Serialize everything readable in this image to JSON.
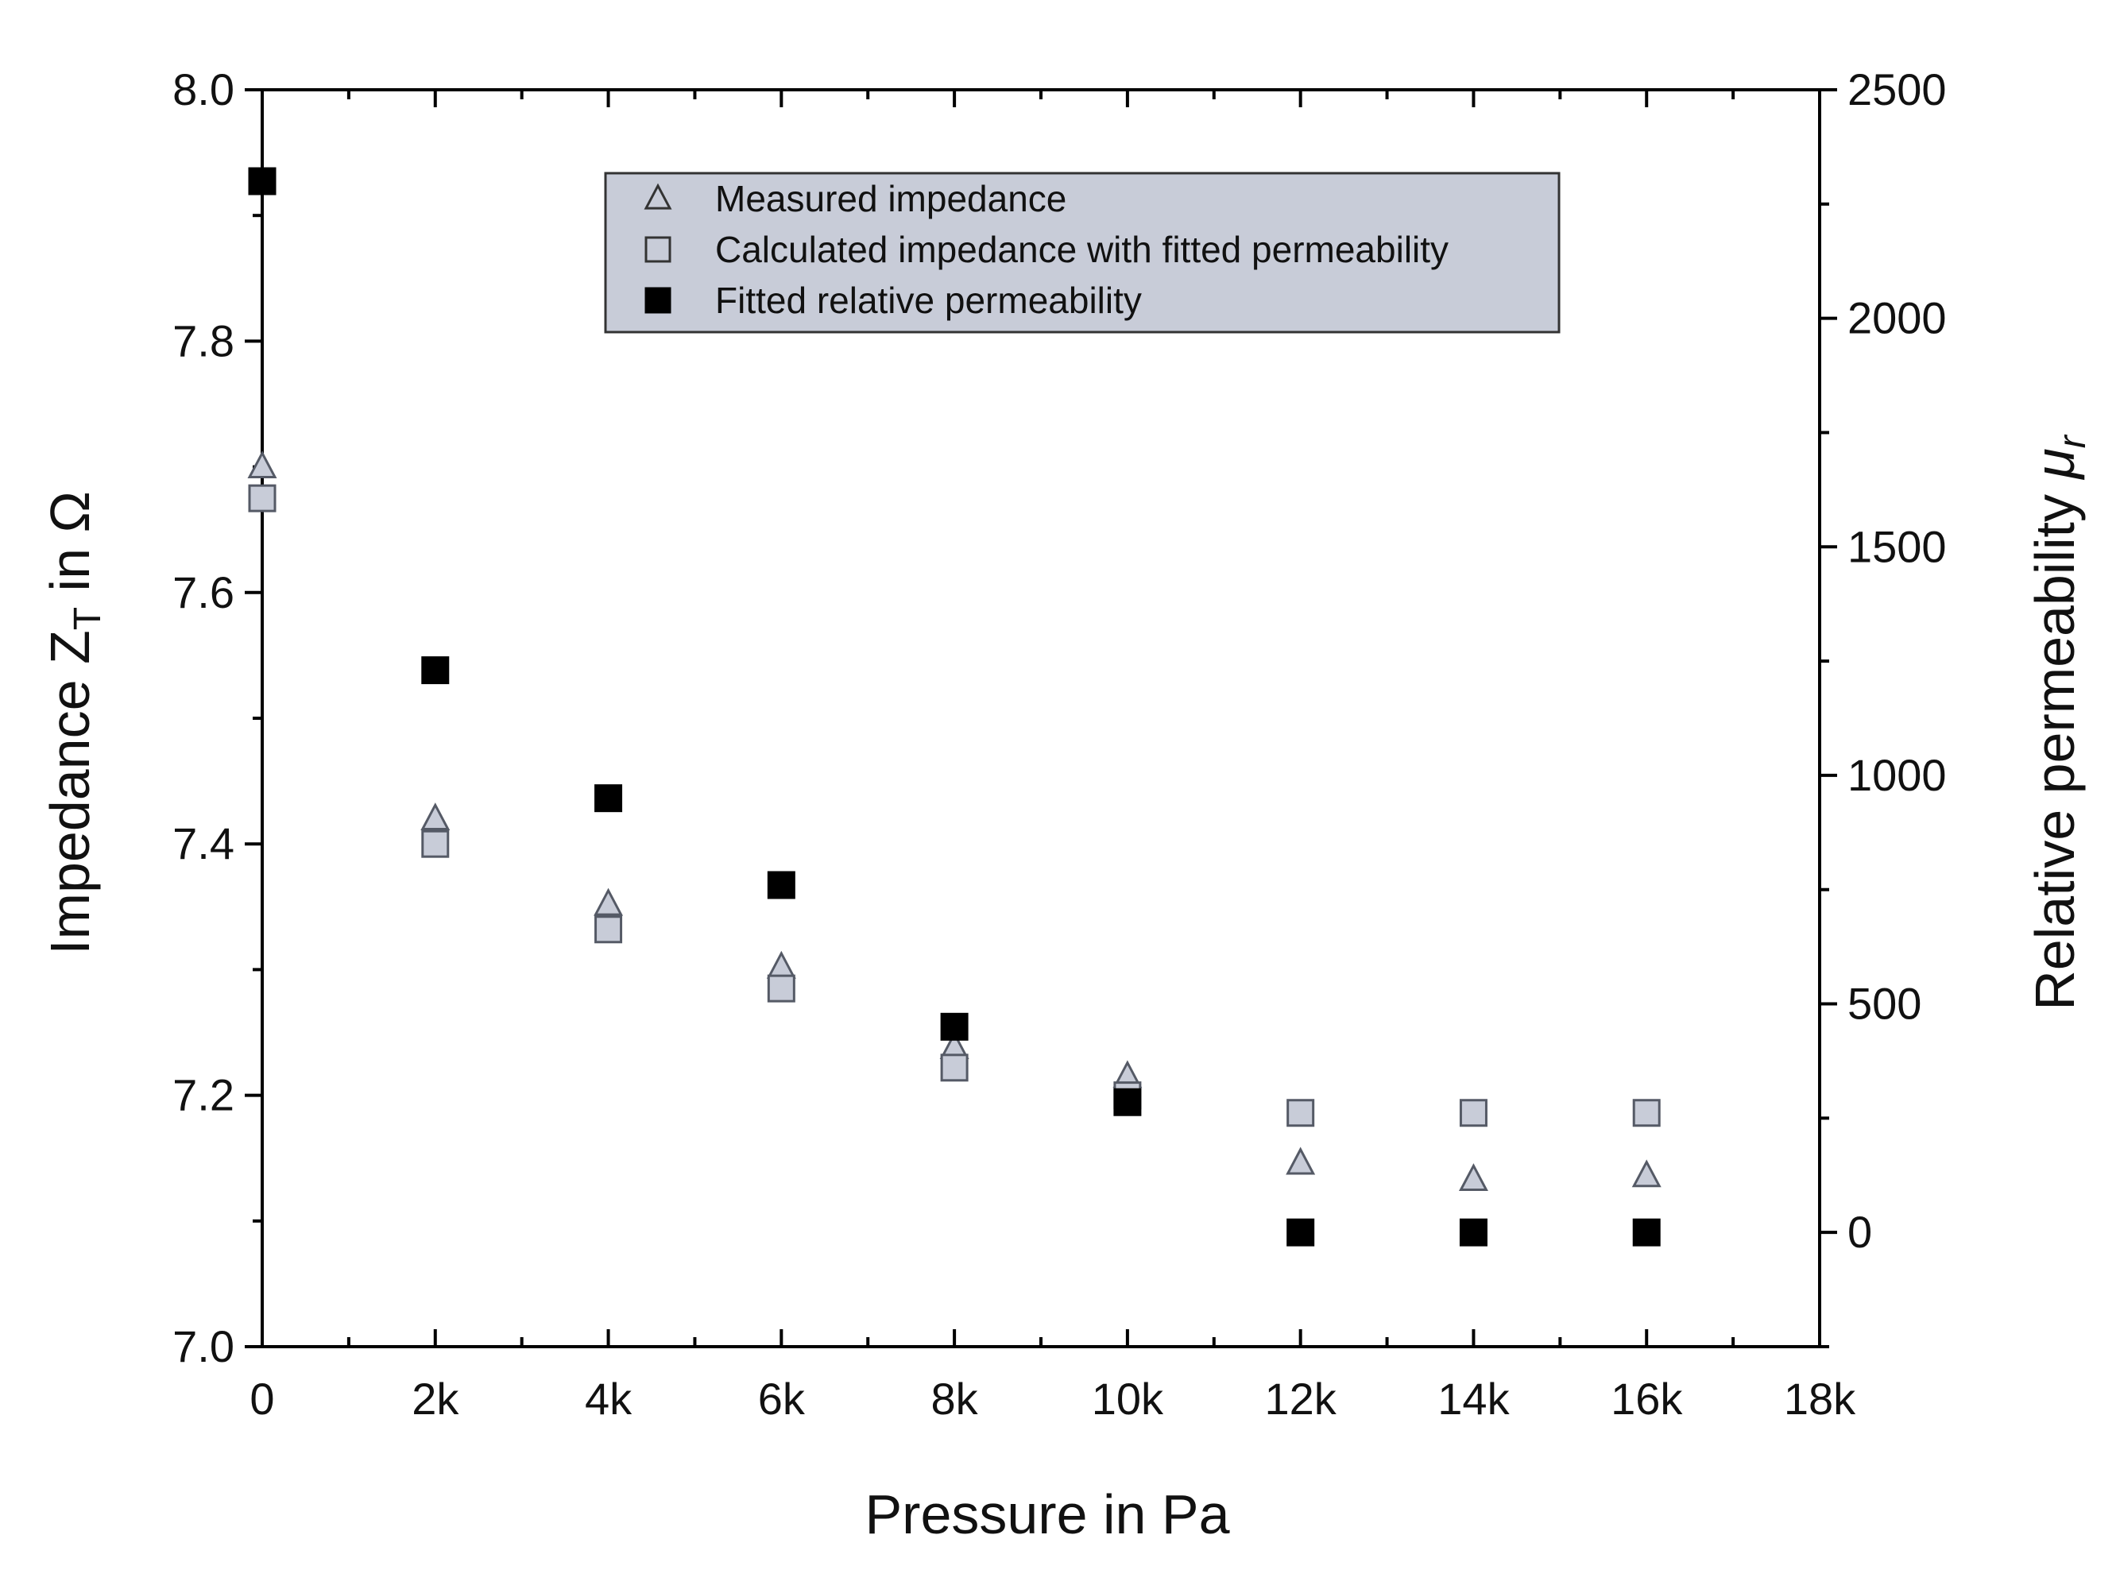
{
  "chart_data": {
    "type": "scatter",
    "x_axis": {
      "label": "Pressure in Pa",
      "min": 0,
      "max": 18000,
      "ticks": [
        0,
        2000,
        4000,
        6000,
        8000,
        10000,
        12000,
        14000,
        16000,
        18000
      ],
      "tick_labels": [
        "0",
        "2k",
        "4k",
        "6k",
        "8k",
        "10k",
        "12k",
        "14k",
        "16k",
        "18k"
      ],
      "minor_step": 1000
    },
    "y_axis_left": {
      "label_main": "Impedance Z",
      "label_sub": "T",
      "label_tail": " in Ω",
      "min": 7.0,
      "max": 8.0,
      "ticks": [
        7.0,
        7.2,
        7.4,
        7.6,
        7.8,
        8.0
      ],
      "tick_labels": [
        "7.0",
        "7.2",
        "7.4",
        "7.6",
        "7.8",
        "8.0"
      ],
      "minor_step": 0.1
    },
    "y_axis_right": {
      "label_main": "Relative permeability ",
      "label_symbol": "μ",
      "label_sub": "r",
      "min": -250,
      "max": 2500,
      "ticks": [
        0,
        500,
        1000,
        1500,
        2000,
        2500
      ],
      "tick_labels": [
        "0",
        "500",
        "1000",
        "1500",
        "2000",
        "2500"
      ],
      "minor_step": 250
    },
    "legend": {
      "position": "top-center",
      "background": "#c8ccd8",
      "entries": [
        {
          "label": "Measured impedance",
          "marker": "triangle-open"
        },
        {
          "label": "Calculated impedance with fitted permeability",
          "marker": "square-open"
        },
        {
          "label": "Fitted relative permeability",
          "marker": "square-filled"
        }
      ]
    },
    "series": [
      {
        "name": "Measured impedance",
        "axis": "left",
        "marker": "triangle",
        "fill": "#c8ccd8",
        "stroke": "#555a66",
        "x": [
          0,
          2000,
          4000,
          6000,
          8000,
          10000,
          12000,
          14000,
          16000
        ],
        "y": [
          7.7,
          7.42,
          7.352,
          7.302,
          7.238,
          7.215,
          7.146,
          7.133,
          7.136
        ]
      },
      {
        "name": "Calculated impedance with fitted permeability",
        "axis": "left",
        "marker": "square",
        "fill": "#c8ccd8",
        "stroke": "#555a66",
        "x": [
          0,
          2000,
          4000,
          6000,
          8000,
          10000,
          12000,
          14000,
          16000
        ],
        "y": [
          7.675,
          7.4,
          7.332,
          7.285,
          7.222,
          7.2,
          7.186,
          7.186,
          7.186
        ]
      },
      {
        "name": "Fitted relative permeability",
        "axis": "right",
        "marker": "square",
        "fill": "#000000",
        "stroke": "#000000",
        "x": [
          0,
          2000,
          4000,
          6000,
          8000,
          10000,
          12000,
          14000,
          16000
        ],
        "y": [
          2300,
          1230,
          950,
          760,
          450,
          285,
          0,
          0,
          0
        ]
      }
    ]
  }
}
